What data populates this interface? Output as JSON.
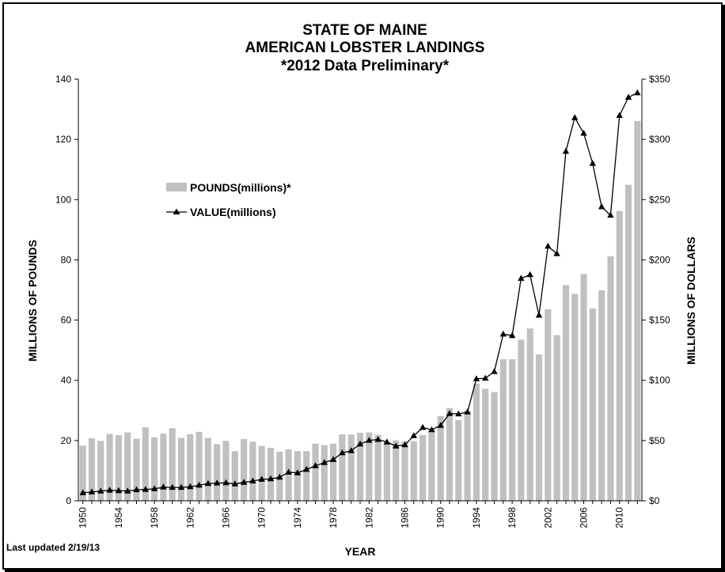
{
  "chart_data": {
    "type": "bar",
    "title": [
      "STATE OF MAINE",
      "AMERICAN LOBSTER LANDINGS",
      "*2012 Data Preliminary*"
    ],
    "xlabel": "YEAR",
    "ylabel_left": "MILLIONS OF POUNDS",
    "ylabel_right": "MILLIONS OF DOLLARS",
    "ylim_left": [
      0,
      140
    ],
    "ylim_right": [
      0,
      350
    ],
    "yticks_left": [
      "0",
      "20",
      "40",
      "60",
      "80",
      "100",
      "120",
      "140"
    ],
    "yticks_right": [
      "$0",
      "$50",
      "$100",
      "$150",
      "$200",
      "$250",
      "$300",
      "$350"
    ],
    "xtick_labels": [
      "1950",
      "1954",
      "1958",
      "1962",
      "1966",
      "1970",
      "1974",
      "1978",
      "1982",
      "1986",
      "1990",
      "1994",
      "1998",
      "2002",
      "2006",
      "2010"
    ],
    "grid": false,
    "legend_position": "upper-left",
    "x": [
      1950,
      1951,
      1952,
      1953,
      1954,
      1955,
      1956,
      1957,
      1958,
      1959,
      1960,
      1961,
      1962,
      1963,
      1964,
      1965,
      1966,
      1967,
      1968,
      1969,
      1970,
      1971,
      1972,
      1973,
      1974,
      1975,
      1976,
      1977,
      1978,
      1979,
      1980,
      1981,
      1982,
      1983,
      1984,
      1985,
      1986,
      1987,
      1988,
      1989,
      1990,
      1991,
      1992,
      1993,
      1994,
      1995,
      1996,
      1997,
      1998,
      1999,
      2000,
      2001,
      2002,
      2003,
      2004,
      2005,
      2006,
      2007,
      2008,
      2009,
      2010,
      2011,
      2012
    ],
    "series": [
      {
        "name": "POUNDS(millions)*",
        "kind": "bar",
        "axis": "left",
        "color": "#c0c0c0",
        "values": [
          18.3,
          20.8,
          19.9,
          22.2,
          21.8,
          22.7,
          20.6,
          24.4,
          21.1,
          22.3,
          24.1,
          20.9,
          22.1,
          22.9,
          20.9,
          18.8,
          19.9,
          16.5,
          20.5,
          19.6,
          18.2,
          17.6,
          16.3,
          17.1,
          16.5,
          16.5,
          19.0,
          18.5,
          19.0,
          22.1,
          22.0,
          22.6,
          22.7,
          21.9,
          19.5,
          20.1,
          19.7,
          19.8,
          21.8,
          23.4,
          28.1,
          30.8,
          26.8,
          29.9,
          38.9,
          37.2,
          36.1,
          47.0,
          47.0,
          53.5,
          57.2,
          48.6,
          63.6,
          55.0,
          71.6,
          68.7,
          75.3,
          63.9,
          69.9,
          81.2,
          96.2,
          104.9,
          126.1
        ]
      },
      {
        "name": "VALUE(millions)",
        "kind": "line",
        "axis": "right",
        "color": "#000000",
        "values": [
          6.6,
          7.3,
          8.1,
          8.8,
          8.4,
          8.1,
          9.1,
          9.4,
          9.9,
          11.3,
          11.1,
          11.1,
          11.6,
          12.9,
          14.3,
          14.7,
          15.0,
          13.9,
          15.3,
          16.4,
          17.8,
          18.2,
          19.6,
          23.7,
          23.2,
          26.0,
          29.0,
          31.7,
          34.2,
          39.8,
          41.5,
          47.1,
          50.2,
          50.9,
          48.8,
          45.4,
          46.4,
          54.0,
          60.8,
          59.0,
          62.5,
          72.4,
          72.1,
          73.7,
          101.2,
          101.7,
          107.2,
          138.3,
          137.1,
          184.6,
          187.6,
          154.0,
          211.3,
          205.0,
          290.0,
          318.0,
          305.0,
          280.0,
          244.0,
          237.0,
          319.8,
          334.9,
          338.6
        ]
      }
    ]
  },
  "footer": {
    "last_updated": "Last updated 2/19/13"
  }
}
